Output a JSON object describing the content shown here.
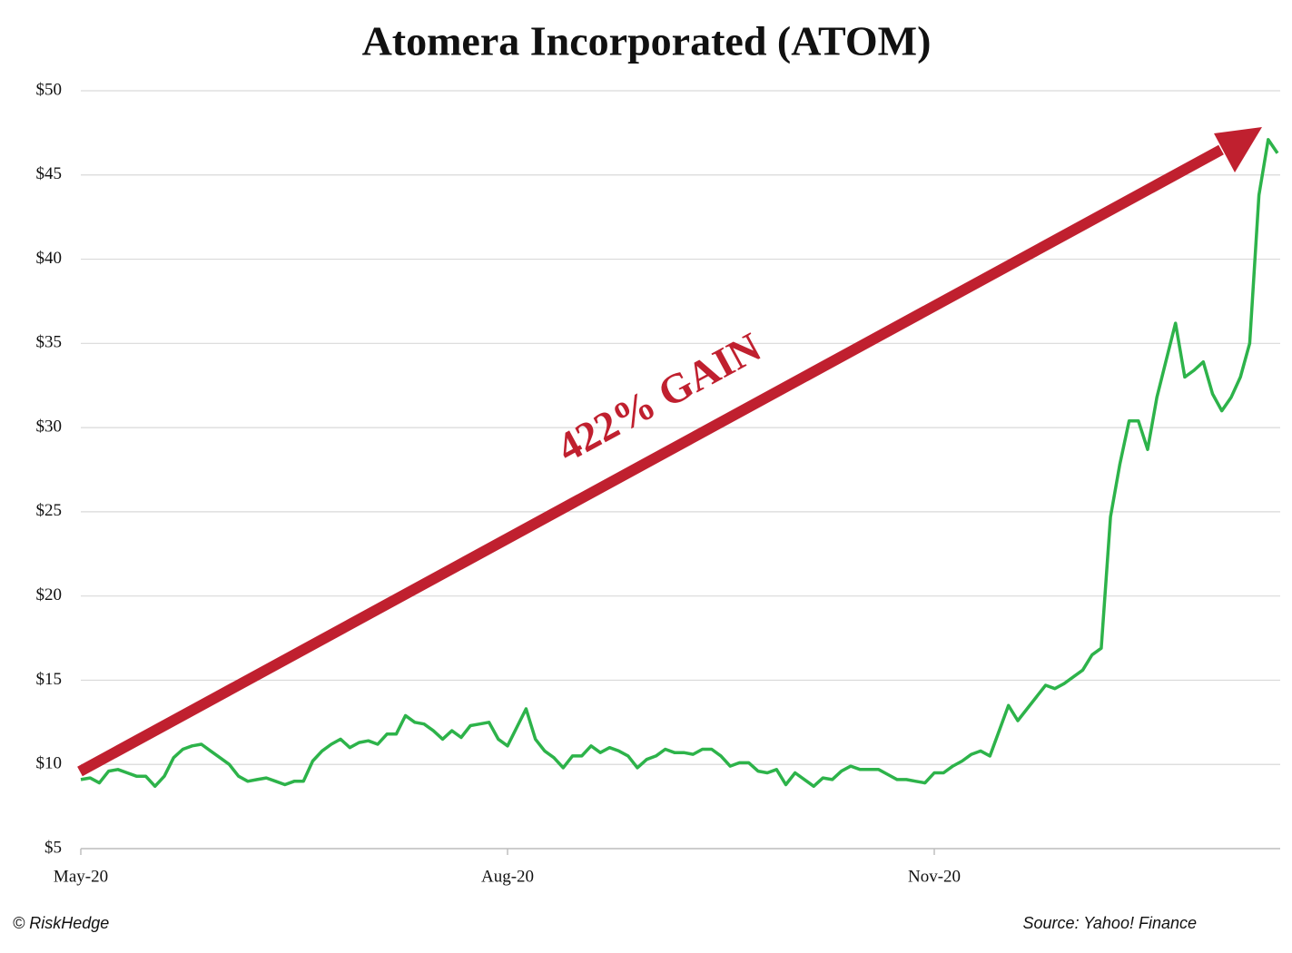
{
  "chart_data": {
    "type": "line",
    "title": "Atomera Incorporated (ATOM)",
    "annotation": "422% GAIN",
    "credit": "© RiskHedge",
    "source": "Source: Yahoo! Finance",
    "categories": [
      "May-20",
      null,
      null,
      null,
      null,
      null,
      null,
      null,
      null,
      null,
      null,
      null,
      null,
      null,
      null,
      null,
      null,
      null,
      null,
      null,
      null,
      null,
      null,
      null,
      null,
      null,
      null,
      null,
      null,
      null,
      null,
      null,
      null,
      null,
      null,
      null,
      null,
      null,
      null,
      null,
      null,
      null,
      null,
      null,
      null,
      null,
      "Aug-20",
      null,
      null,
      null,
      null,
      null,
      null,
      null,
      null,
      null,
      null,
      null,
      null,
      null,
      null,
      null,
      null,
      null,
      null,
      null,
      null,
      null,
      null,
      null,
      null,
      null,
      null,
      null,
      null,
      null,
      null,
      null,
      null,
      null,
      null,
      null,
      null,
      null,
      null,
      null,
      null,
      null,
      null,
      null,
      null,
      null,
      "Nov-20",
      null,
      null,
      null,
      null,
      null,
      null,
      null,
      null,
      null,
      null,
      null,
      null,
      null,
      null,
      null,
      null,
      null,
      null,
      null,
      null,
      null,
      null,
      null,
      null,
      null,
      null,
      null,
      null,
      null,
      null,
      null,
      null,
      null,
      null,
      null,
      null,
      null
    ],
    "series": [
      {
        "color": "#2db34a",
        "values": [
          9.1,
          9.2,
          8.9,
          9.6,
          9.7,
          9.5,
          9.3,
          9.3,
          8.7,
          9.3,
          10.4,
          10.9,
          11.1,
          11.2,
          10.8,
          10.4,
          10.0,
          9.3,
          9.0,
          9.1,
          9.2,
          9.0,
          8.8,
          9.0,
          9.0,
          10.2,
          10.8,
          11.2,
          11.5,
          11.0,
          11.3,
          11.4,
          11.2,
          11.8,
          11.8,
          12.9,
          12.5,
          12.4,
          12.0,
          11.5,
          12.0,
          11.6,
          12.3,
          12.4,
          12.5,
          11.5,
          11.1,
          12.2,
          13.3,
          11.5,
          10.8,
          10.4,
          9.8,
          10.5,
          10.5,
          11.1,
          10.7,
          11.0,
          10.8,
          10.5,
          9.8,
          10.3,
          10.5,
          10.9,
          10.7,
          10.7,
          10.6,
          10.9,
          10.9,
          10.5,
          9.9,
          10.1,
          10.1,
          9.6,
          9.5,
          9.7,
          8.8,
          9.5,
          9.1,
          8.7,
          9.2,
          9.1,
          9.6,
          9.9,
          9.7,
          9.7,
          9.7,
          9.4,
          9.1,
          9.1,
          9.0,
          8.9,
          9.5,
          9.5,
          9.9,
          10.2,
          10.6,
          10.8,
          10.5,
          12.0,
          13.5,
          12.6,
          13.3,
          14.0,
          14.7,
          14.5,
          14.8,
          15.2,
          15.6,
          16.5,
          16.9,
          24.7,
          27.8,
          30.4,
          30.4,
          28.7,
          31.8,
          34.0,
          36.2,
          33.0,
          33.4,
          33.9,
          32.0,
          31.0,
          31.8,
          33.0,
          35.0,
          43.8,
          47.1,
          46.3
        ]
      }
    ],
    "ylim": [
      5,
      50
    ],
    "yticks": [
      {
        "value": 5,
        "label": "$5"
      },
      {
        "value": 10,
        "label": "$10"
      },
      {
        "value": 15,
        "label": "$15"
      },
      {
        "value": 20,
        "label": "$20"
      },
      {
        "value": 25,
        "label": "$25"
      },
      {
        "value": 30,
        "label": "$30"
      },
      {
        "value": 35,
        "label": "$35"
      },
      {
        "value": 40,
        "label": "$40"
      },
      {
        "value": 45,
        "label": "$45"
      },
      {
        "value": 50,
        "label": "$50"
      }
    ],
    "grid": true
  }
}
